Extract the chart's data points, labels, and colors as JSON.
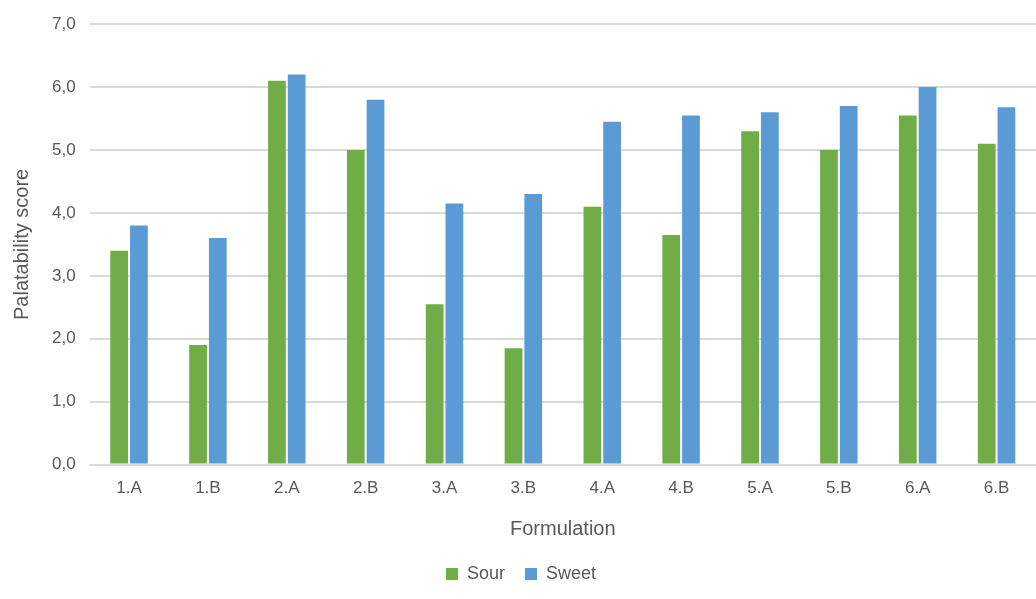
{
  "chart_data": {
    "type": "bar",
    "xlabel": "Formulation",
    "ylabel": "Palatability score",
    "categories": [
      "1.A",
      "1.B",
      "2.A",
      "2.B",
      "3.A",
      "3.B",
      "4.A",
      "4.B",
      "5.A",
      "5.B",
      "6.A",
      "6.B"
    ],
    "series": [
      {
        "name": "Sour",
        "color": "#70ad47",
        "values": [
          3.4,
          1.9,
          6.1,
          5.0,
          2.55,
          1.85,
          4.1,
          3.65,
          5.3,
          5.0,
          5.55,
          5.1
        ]
      },
      {
        "name": "Sweet",
        "color": "#5b9bd5",
        "values": [
          3.8,
          3.6,
          6.2,
          5.8,
          4.15,
          4.3,
          5.45,
          5.55,
          5.6,
          5.7,
          6.0,
          5.68
        ]
      }
    ],
    "ylim": [
      0,
      7
    ],
    "yticks": [
      {
        "value": 0,
        "label": "0,0"
      },
      {
        "value": 1,
        "label": "1,0"
      },
      {
        "value": 2,
        "label": "2,0"
      },
      {
        "value": 3,
        "label": "3,0"
      },
      {
        "value": 4,
        "label": "4,0"
      },
      {
        "value": 5,
        "label": "5,0"
      },
      {
        "value": 6,
        "label": "6,0"
      },
      {
        "value": 7,
        "label": "7,0"
      }
    ],
    "grid": "y",
    "legend": "bottom"
  }
}
